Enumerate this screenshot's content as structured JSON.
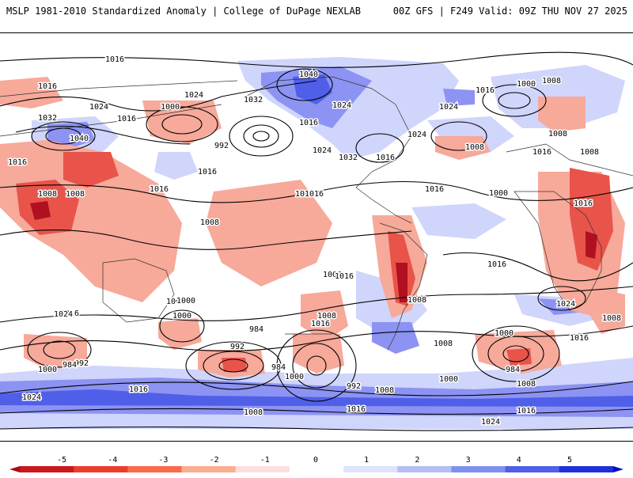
{
  "header": {
    "title_left": "MSLP 1981-2010 Standardized Anomaly | College of DuPage NEXLAB",
    "title_right": "00Z GFS | F249 Valid: 09Z THU NOV 27 2025"
  },
  "colorbar": {
    "ticks": [
      "-5",
      "-4",
      "-3",
      "-2",
      "-1",
      "0",
      "1",
      "2",
      "3",
      "4",
      "5"
    ],
    "colors": [
      "#a50f15",
      "#cb181d",
      "#ef3b2c",
      "#fb6a4a",
      "#fcae91",
      "#fde0dd",
      "#ffffff",
      "#dde3fb",
      "#b4bff5",
      "#7f8ff0",
      "#4f5fe8",
      "#2030d8",
      "#0a10b8"
    ]
  },
  "map": {
    "isobar_labels": [
      "1016",
      "1016",
      "1024",
      "1032",
      "1040",
      "1000",
      "1024",
      "1016",
      "992",
      "1016",
      "1016",
      "1040",
      "1032",
      "1024",
      "1016",
      "1032",
      "1024",
      "1016",
      "1016",
      "1024",
      "1008",
      "1000",
      "1008",
      "1016",
      "1008",
      "1016",
      "1024",
      "1008",
      "1016",
      "1008",
      "1008",
      "1008",
      "1016",
      "1016",
      "1000",
      "1016",
      "1008",
      "1016",
      "1016",
      "1000",
      "1008",
      "1016",
      "1008",
      "1024",
      "1008",
      "1000",
      "984",
      "992",
      "1000",
      "1008",
      "1016",
      "1024",
      "992",
      "984",
      "984",
      "1000",
      "992",
      "1008",
      "1016",
      "1024",
      "1008",
      "1000",
      "1016",
      "1024",
      "1008",
      "1016",
      "984",
      "1000",
      "1008",
      "1016"
    ],
    "high_label_color": "#000000",
    "negative_anomaly_color": "#f08b7a",
    "strong_negative_color": "#c8102e",
    "positive_anomaly_color": "#8c93f2",
    "weak_positive_color": "#cfd5fb"
  }
}
